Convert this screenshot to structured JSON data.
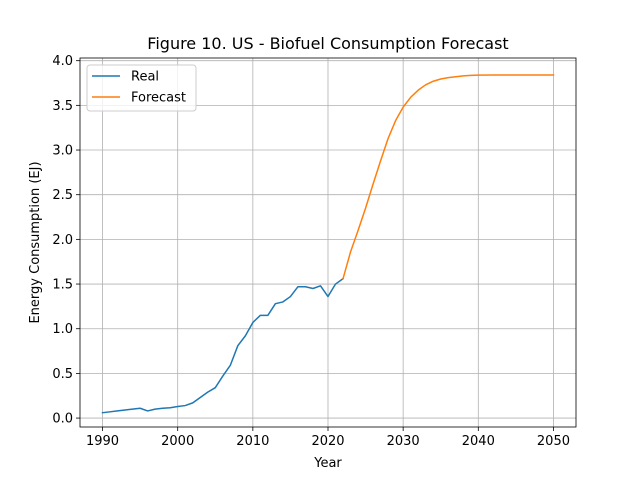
{
  "chart_data": {
    "type": "line",
    "title": "Figure 10. US - Biofuel Consumption Forecast",
    "xlabel": "Year",
    "ylabel": "Energy Consumption (EJ)",
    "xlim": [
      1987.0,
      2053.0
    ],
    "ylim": [
      -0.1,
      4.03
    ],
    "xticks": [
      1990,
      2000,
      2010,
      2020,
      2030,
      2040,
      2050
    ],
    "yticks": [
      0.0,
      0.5,
      1.0,
      1.5,
      2.0,
      2.5,
      3.0,
      3.5,
      4.0
    ],
    "xtick_labels": [
      "1990",
      "2000",
      "2010",
      "2020",
      "2030",
      "2040",
      "2050"
    ],
    "ytick_labels": [
      "0.0",
      "0.5",
      "1.0",
      "1.5",
      "2.0",
      "2.5",
      "3.0",
      "3.5",
      "4.0"
    ],
    "grid": true,
    "legend": "upper left",
    "series": [
      {
        "name": "Real",
        "color": "#1f77b4",
        "x": [
          1990,
          1991,
          1992,
          1993,
          1994,
          1995,
          1996,
          1997,
          1998,
          1999,
          2000,
          2001,
          2002,
          2003,
          2004,
          2005,
          2006,
          2007,
          2008,
          2009,
          2010,
          2011,
          2012,
          2013,
          2014,
          2015,
          2016,
          2017,
          2018,
          2019,
          2020,
          2021,
          2022
        ],
        "y": [
          0.06,
          0.07,
          0.08,
          0.09,
          0.1,
          0.11,
          0.08,
          0.1,
          0.11,
          0.115,
          0.13,
          0.14,
          0.17,
          0.23,
          0.29,
          0.34,
          0.47,
          0.59,
          0.81,
          0.92,
          1.07,
          1.15,
          1.15,
          1.28,
          1.3,
          1.36,
          1.47,
          1.47,
          1.45,
          1.48,
          1.36,
          1.5,
          1.56
        ]
      },
      {
        "name": "Forecast",
        "color": "#ff7f0e",
        "x": [
          2022,
          2023,
          2024,
          2025,
          2026,
          2027,
          2028,
          2029,
          2030,
          2031,
          2032,
          2033,
          2034,
          2035,
          2036,
          2037,
          2038,
          2039,
          2040,
          2042,
          2044,
          2046,
          2048,
          2050
        ],
        "y": [
          1.56,
          1.86,
          2.1,
          2.35,
          2.62,
          2.88,
          3.13,
          3.33,
          3.48,
          3.59,
          3.67,
          3.73,
          3.77,
          3.795,
          3.81,
          3.82,
          3.83,
          3.835,
          3.838,
          3.84,
          3.84,
          3.84,
          3.84,
          3.84
        ]
      }
    ]
  }
}
